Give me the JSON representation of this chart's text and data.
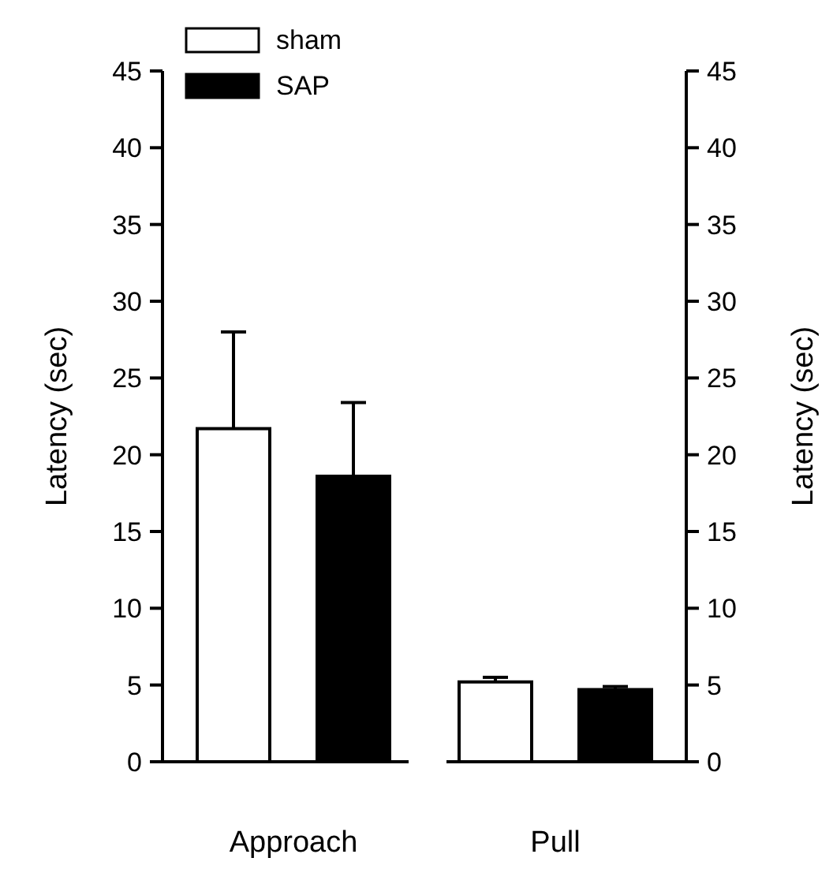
{
  "chart_data": {
    "type": "bar",
    "categories": [
      "Approach",
      "Pull"
    ],
    "series": [
      {
        "name": "sham",
        "color": "#ffffff",
        "values": [
          21.7,
          5.2
        ],
        "errors": [
          [
            21.7,
            28.0
          ],
          [
            5.2,
            5.5
          ]
        ]
      },
      {
        "name": "SAP",
        "color": "#000000",
        "values": [
          18.6,
          4.7
        ],
        "errors": [
          [
            18.6,
            23.4
          ],
          [
            4.7,
            4.9
          ]
        ]
      }
    ],
    "ylabel": "Latency (sec)",
    "y2label": "Latency (sec)",
    "ylim": [
      0,
      45
    ],
    "yticks": [
      0,
      5,
      10,
      15,
      20,
      25,
      30,
      35,
      40,
      45
    ],
    "y2lim": [
      0,
      45
    ],
    "y2ticks": [
      0,
      5,
      10,
      15,
      20,
      25,
      30,
      35,
      40,
      45
    ],
    "legend": "top left",
    "grid": false
  }
}
